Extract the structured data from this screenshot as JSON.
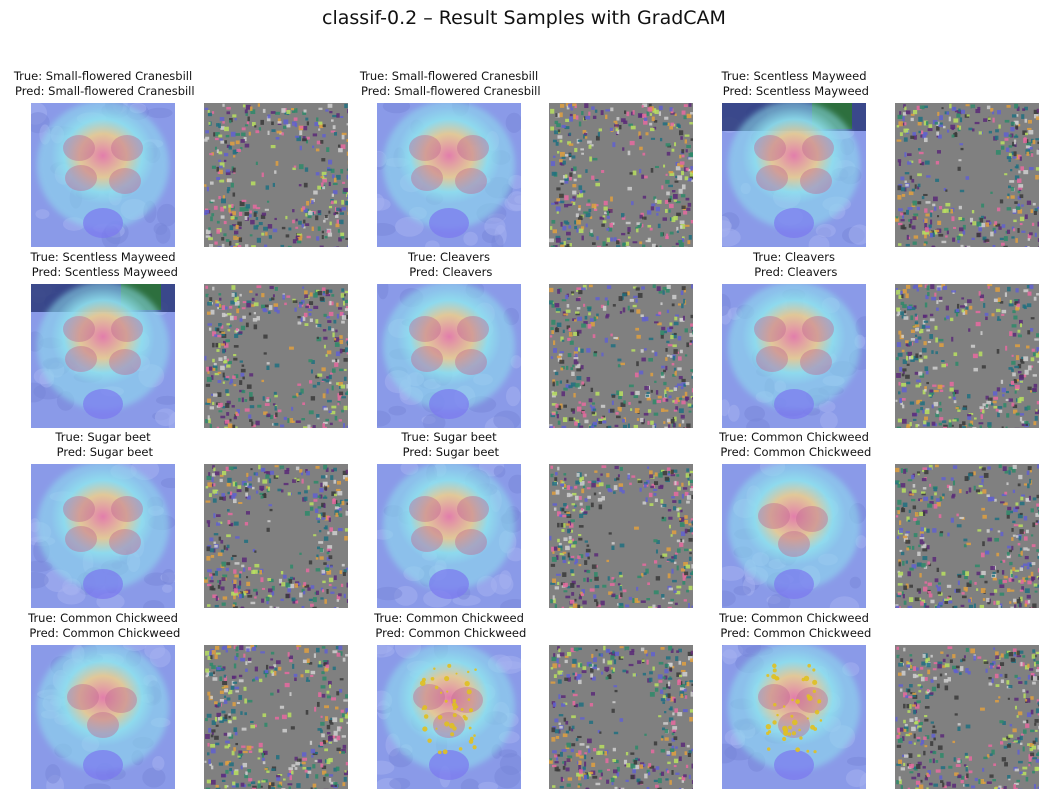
{
  "figure": {
    "title": "classif-0.2 – Result Samples with GradCAM"
  },
  "samples": [
    {
      "true_label": "True: Small-flowered Cranesbill",
      "pred_label": " Pred: Small-flowered Cranesbill",
      "variant": "cranesbill"
    },
    {
      "true_label": "True: Small-flowered Cranesbill",
      "pred_label": " Pred: Small-flowered Cranesbill",
      "variant": "cranesbill"
    },
    {
      "true_label": "True: Scentless Mayweed",
      "pred_label": " Pred: Scentless Mayweed",
      "variant": "mayweed"
    },
    {
      "true_label": "True: Scentless Mayweed",
      "pred_label": " Pred: Scentless Mayweed",
      "variant": "mayweed"
    },
    {
      "true_label": "True: Cleavers",
      "pred_label": " Pred: Cleavers",
      "variant": "cleavers"
    },
    {
      "true_label": "True: Cleavers",
      "pred_label": " Pred: Cleavers",
      "variant": "cleavers"
    },
    {
      "true_label": "True: Sugar beet",
      "pred_label": " Pred: Sugar beet",
      "variant": "sugarbeet"
    },
    {
      "true_label": "True: Sugar beet",
      "pred_label": " Pred: Sugar beet",
      "variant": "sugarbeet"
    },
    {
      "true_label": "True: Common Chickweed",
      "pred_label": " Pred: Common Chickweed",
      "variant": "chickweed"
    },
    {
      "true_label": "True: Common Chickweed",
      "pred_label": " Pred: Common Chickweed",
      "variant": "chickweed"
    },
    {
      "true_label": "True: Common Chickweed",
      "pred_label": " Pred: Common Chickweed",
      "variant": "chickweed-yellow"
    },
    {
      "true_label": "True: Common Chickweed",
      "pred_label": " Pred: Common Chickweed",
      "variant": "chickweed-yellow"
    }
  ],
  "colors": {
    "heatmap_base": "#8a9ae8",
    "heatmap_hot": "#e77aa8",
    "heatmap_warm": "#f0c98a",
    "heatmap_cyan": "#8fe0ee",
    "guided_gray": "#808080"
  }
}
